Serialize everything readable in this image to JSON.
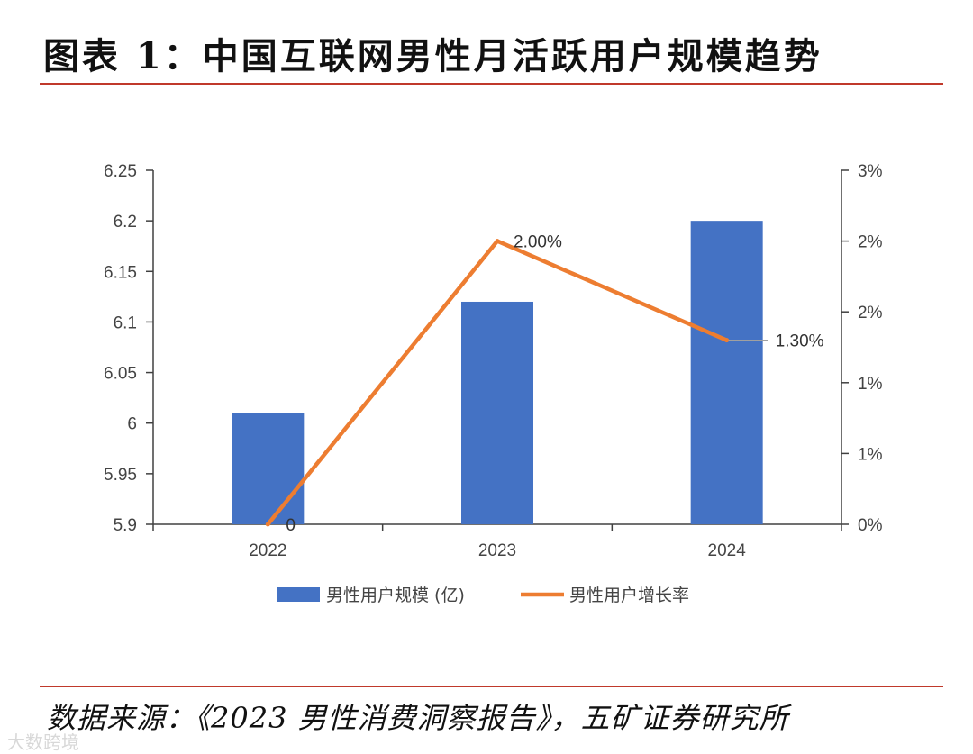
{
  "title": "图表 1：中国互联网男性月活跃用户规模趋势",
  "source": "数据来源：《2023 男性消费洞察报告》，五矿证券研究所",
  "watermark": "大数跨境",
  "colors": {
    "bar": "#4472c4",
    "line": "#ed7d31",
    "rule": "#c0392b",
    "axis": "#404040"
  },
  "chart_data": {
    "type": "bar+line",
    "categories": [
      "2022",
      "2023",
      "2024"
    ],
    "series": [
      {
        "name": "男性用户规模 (亿)",
        "type": "bar",
        "axis": "left",
        "values": [
          6.01,
          6.12,
          6.2
        ]
      },
      {
        "name": "男性用户增长率",
        "type": "line",
        "axis": "right",
        "values": [
          0.0,
          2.0,
          1.3
        ]
      }
    ],
    "data_labels": [
      "0",
      "2.00%",
      "1.30%"
    ],
    "y_left": {
      "ylim": [
        5.9,
        6.25
      ],
      "ticks": [
        5.9,
        5.95,
        6,
        6.05,
        6.1,
        6.15,
        6.2,
        6.25
      ],
      "tick_labels": [
        "5.9",
        "5.95",
        "6",
        "6.05",
        "6.1",
        "6.15",
        "6.2",
        "6.25"
      ]
    },
    "y_right": {
      "ylim": [
        0,
        2.5
      ],
      "ticks": [
        0,
        0.5,
        1,
        1.5,
        2,
        2.5
      ],
      "tick_labels": [
        "0%",
        "1%",
        "1%",
        "2%",
        "2%",
        "3%"
      ]
    },
    "legend": "bottom",
    "grid": false
  }
}
